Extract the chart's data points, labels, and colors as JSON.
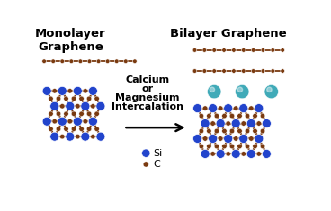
{
  "si_color": "#2244cc",
  "c_color": "#7a3a10",
  "teal_color": "#40aab8",
  "bond_brown": "#7a3a10",
  "bond_blue": "#3355cc",
  "title_left": "Monolayer\nGraphene",
  "title_right": "Bilayer Graphene",
  "center_text_lines": [
    "Calcium",
    "or",
    "Magnesium",
    "Intercalation"
  ],
  "legend_si": "Si",
  "legend_c": "C"
}
